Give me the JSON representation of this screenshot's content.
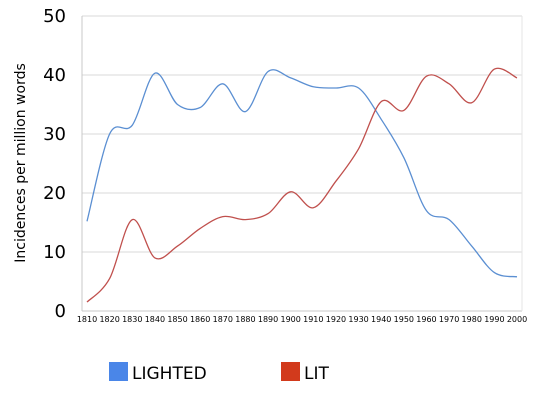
{
  "chart_data": {
    "type": "line",
    "title": "",
    "xlabel": "",
    "ylabel": "Incidences per million words",
    "ylim": [
      0,
      50
    ],
    "yticks": [
      "0",
      "10",
      "20",
      "30",
      "40",
      "50"
    ],
    "grid": true,
    "legend_position": "bottom",
    "categories": [
      "1810",
      "1820",
      "1830",
      "1840",
      "1850",
      "1860",
      "1870",
      "1880",
      "1890",
      "1900",
      "1910",
      "1920",
      "1930",
      "1940",
      "1950",
      "1960",
      "1970",
      "1980",
      "1990",
      "2000"
    ],
    "series": [
      {
        "name": "LIGHTED",
        "color": "#5b8fd2",
        "legend_color": "#4a86e8",
        "values": [
          15.2,
          30,
          31.5,
          40.3,
          35,
          34.5,
          38.5,
          33.8,
          40.6,
          39.5,
          38,
          37.8,
          37.8,
          32.5,
          26,
          17,
          15.5,
          11,
          6.5,
          5.8
        ]
      },
      {
        "name": "LIT",
        "color": "#c0504d",
        "legend_color": "#d23a1c",
        "values": [
          1.5,
          5.5,
          15.5,
          9,
          11,
          14,
          16,
          15.5,
          16.5,
          20.2,
          17.5,
          22,
          27.5,
          35.5,
          34,
          39.8,
          38.5,
          35.3,
          41,
          39.5
        ]
      }
    ]
  }
}
